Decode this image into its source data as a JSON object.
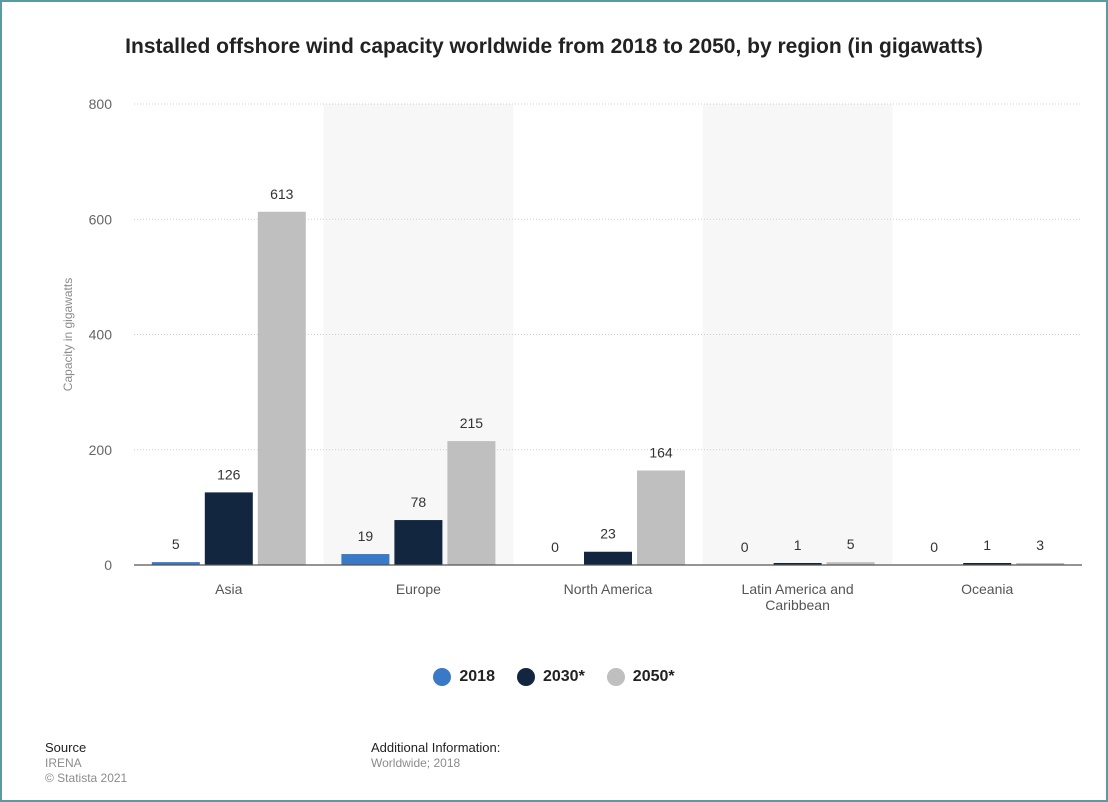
{
  "chart_data": {
    "type": "bar",
    "title": "Installed offshore wind capacity worldwide from 2018 to 2050, by region (in gigawatts)",
    "xlabel": "",
    "ylabel": "Capacity in gigawatts",
    "ylim": [
      0,
      800
    ],
    "yticks": [
      0,
      200,
      400,
      600,
      800
    ],
    "categories": [
      [
        "Asia"
      ],
      [
        "Europe"
      ],
      [
        "North America"
      ],
      [
        "Latin America and",
        "Caribbean"
      ],
      [
        "Oceania"
      ]
    ],
    "series": [
      {
        "name": "2018",
        "color": "#3a79c6",
        "values": [
          5,
          19,
          0,
          0,
          0
        ]
      },
      {
        "name": "2030*",
        "color": "#12263f",
        "values": [
          126,
          78,
          23,
          1,
          1
        ]
      },
      {
        "name": "2050*",
        "color": "#bfbfbf",
        "values": [
          613,
          215,
          164,
          5,
          3
        ]
      }
    ],
    "grid": true,
    "legend_position": "bottom"
  },
  "footer": {
    "source_heading": "Source",
    "source_lines": [
      "IRENA",
      "© Statista 2021"
    ],
    "info_heading": "Additional Information:",
    "info_lines": [
      "Worldwide; 2018"
    ]
  }
}
